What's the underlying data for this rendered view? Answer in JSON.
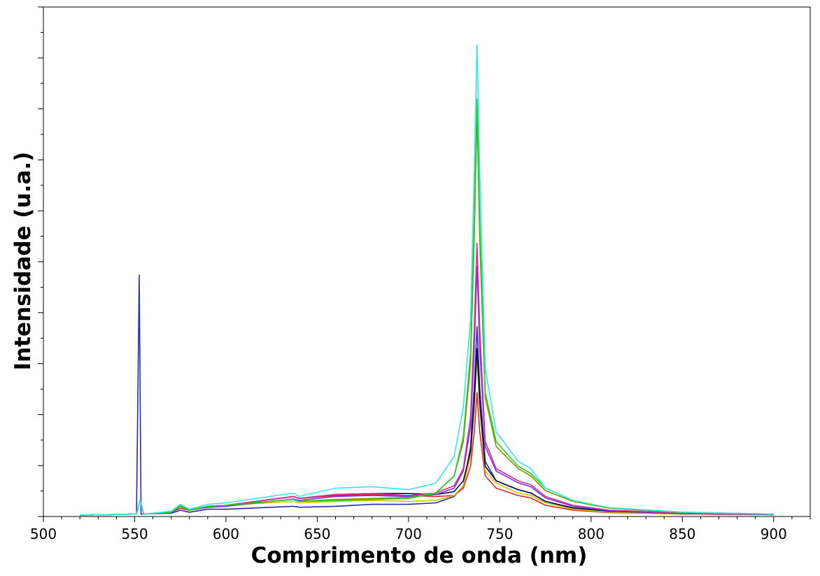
{
  "chart_data": {
    "type": "line",
    "xlabel": "Comprimento de onda (nm)",
    "ylabel": "Intensidade (u.a.)",
    "xlim": [
      500,
      920
    ],
    "ylim": [
      0,
      1000
    ],
    "x_ticks": [
      500,
      550,
      600,
      650,
      700,
      750,
      800,
      850,
      900
    ],
    "y_tick_labels_shown": false,
    "grid": false,
    "legend": "none",
    "colors": [
      "#33e6e6",
      "#22cc22",
      "#7a9a00",
      "#d42a9a",
      "#7733dd",
      "#0a0a40",
      "#c8c800",
      "#dd2222",
      "#2a2aaa"
    ],
    "series": [
      {
        "color": "#33e6e6",
        "values": [
          [
            520,
            0
          ],
          [
            551,
            2
          ],
          [
            553,
            30
          ],
          [
            555,
            2
          ],
          [
            570,
            8
          ],
          [
            575,
            22
          ],
          [
            580,
            12
          ],
          [
            590,
            22
          ],
          [
            600,
            25
          ],
          [
            637,
            45
          ],
          [
            640,
            38
          ],
          [
            660,
            55
          ],
          [
            680,
            58
          ],
          [
            700,
            52
          ],
          [
            715,
            65
          ],
          [
            725,
            120
          ],
          [
            730,
            220
          ],
          [
            734,
            400
          ],
          [
            736,
            700
          ],
          [
            737.5,
            960
          ],
          [
            739,
            700
          ],
          [
            742,
            300
          ],
          [
            748,
            170
          ],
          [
            760,
            110
          ],
          [
            767,
            95
          ],
          [
            775,
            55
          ],
          [
            790,
            30
          ],
          [
            810,
            15
          ],
          [
            850,
            6
          ],
          [
            900,
            2
          ]
        ]
      },
      {
        "color": "#22cc22",
        "values": [
          [
            520,
            0
          ],
          [
            551,
            2
          ],
          [
            553,
            30
          ],
          [
            555,
            2
          ],
          [
            570,
            6
          ],
          [
            575,
            20
          ],
          [
            580,
            10
          ],
          [
            590,
            18
          ],
          [
            600,
            20
          ],
          [
            637,
            32
          ],
          [
            640,
            28
          ],
          [
            660,
            30
          ],
          [
            680,
            32
          ],
          [
            700,
            34
          ],
          [
            715,
            45
          ],
          [
            725,
            80
          ],
          [
            730,
            160
          ],
          [
            734,
            330
          ],
          [
            736,
            600
          ],
          [
            737.5,
            850
          ],
          [
            739,
            600
          ],
          [
            742,
            250
          ],
          [
            748,
            150
          ],
          [
            760,
            100
          ],
          [
            767,
            85
          ],
          [
            775,
            55
          ],
          [
            790,
            30
          ],
          [
            810,
            15
          ],
          [
            850,
            6
          ],
          [
            900,
            2
          ]
        ]
      },
      {
        "color": "#7a9a00",
        "values": [
          [
            520,
            0
          ],
          [
            551,
            2
          ],
          [
            553,
            30
          ],
          [
            555,
            2
          ],
          [
            570,
            6
          ],
          [
            575,
            18
          ],
          [
            580,
            10
          ],
          [
            590,
            18
          ],
          [
            600,
            20
          ],
          [
            637,
            32
          ],
          [
            640,
            28
          ],
          [
            660,
            32
          ],
          [
            680,
            34
          ],
          [
            700,
            36
          ],
          [
            715,
            45
          ],
          [
            725,
            80
          ],
          [
            730,
            150
          ],
          [
            734,
            310
          ],
          [
            736,
            560
          ],
          [
            737.5,
            820
          ],
          [
            739,
            560
          ],
          [
            742,
            240
          ],
          [
            748,
            140
          ],
          [
            760,
            95
          ],
          [
            767,
            80
          ],
          [
            775,
            50
          ],
          [
            790,
            28
          ],
          [
            810,
            14
          ],
          [
            850,
            5
          ],
          [
            900,
            2
          ]
        ]
      },
      {
        "color": "#d42a9a",
        "values": [
          [
            520,
            0
          ],
          [
            551,
            2
          ],
          [
            553,
            30
          ],
          [
            555,
            2
          ],
          [
            570,
            6
          ],
          [
            575,
            20
          ],
          [
            580,
            10
          ],
          [
            590,
            18
          ],
          [
            600,
            20
          ],
          [
            637,
            38
          ],
          [
            640,
            34
          ],
          [
            660,
            42
          ],
          [
            680,
            44
          ],
          [
            700,
            40
          ],
          [
            715,
            45
          ],
          [
            725,
            60
          ],
          [
            730,
            95
          ],
          [
            734,
            200
          ],
          [
            736,
            380
          ],
          [
            737.5,
            555
          ],
          [
            739,
            380
          ],
          [
            742,
            150
          ],
          [
            748,
            95
          ],
          [
            760,
            70
          ],
          [
            767,
            62
          ],
          [
            775,
            38
          ],
          [
            790,
            20
          ],
          [
            810,
            10
          ],
          [
            850,
            4
          ],
          [
            900,
            2
          ]
        ]
      },
      {
        "color": "#7733dd",
        "values": [
          [
            520,
            0
          ],
          [
            551,
            2
          ],
          [
            553,
            30
          ],
          [
            555,
            2
          ],
          [
            570,
            6
          ],
          [
            575,
            18
          ],
          [
            580,
            10
          ],
          [
            590,
            16
          ],
          [
            600,
            18
          ],
          [
            637,
            33
          ],
          [
            640,
            30
          ],
          [
            660,
            38
          ],
          [
            680,
            40
          ],
          [
            700,
            38
          ],
          [
            715,
            42
          ],
          [
            725,
            55
          ],
          [
            730,
            90
          ],
          [
            734,
            180
          ],
          [
            736,
            340
          ],
          [
            737.5,
            508
          ],
          [
            739,
            340
          ],
          [
            742,
            140
          ],
          [
            748,
            90
          ],
          [
            760,
            66
          ],
          [
            767,
            58
          ],
          [
            775,
            35
          ],
          [
            790,
            18
          ],
          [
            810,
            9
          ],
          [
            850,
            3
          ],
          [
            900,
            1
          ]
        ]
      },
      {
        "color": "#0a0a40",
        "values": [
          [
            520,
            0
          ],
          [
            551,
            2
          ],
          [
            553,
            30
          ],
          [
            555,
            2
          ],
          [
            570,
            6
          ],
          [
            575,
            18
          ],
          [
            580,
            10
          ],
          [
            590,
            18
          ],
          [
            600,
            20
          ],
          [
            637,
            38
          ],
          [
            640,
            34
          ],
          [
            660,
            42
          ],
          [
            680,
            44
          ],
          [
            700,
            44
          ],
          [
            715,
            42
          ],
          [
            725,
            48
          ],
          [
            730,
            70
          ],
          [
            734,
            130
          ],
          [
            736,
            230
          ],
          [
            737.5,
            340
          ],
          [
            739,
            230
          ],
          [
            742,
            100
          ],
          [
            748,
            70
          ],
          [
            760,
            52
          ],
          [
            767,
            45
          ],
          [
            775,
            28
          ],
          [
            790,
            15
          ],
          [
            810,
            8
          ],
          [
            850,
            3
          ],
          [
            900,
            1
          ]
        ]
      },
      {
        "color": "#c8c800",
        "values": [
          [
            520,
            0
          ],
          [
            551,
            2
          ],
          [
            553,
            30
          ],
          [
            555,
            2
          ],
          [
            570,
            6
          ],
          [
            575,
            18
          ],
          [
            580,
            10
          ],
          [
            590,
            18
          ],
          [
            600,
            20
          ],
          [
            637,
            28
          ],
          [
            640,
            25
          ],
          [
            660,
            28
          ],
          [
            680,
            30
          ],
          [
            700,
            28
          ],
          [
            715,
            30
          ],
          [
            725,
            40
          ],
          [
            730,
            60
          ],
          [
            734,
            120
          ],
          [
            736,
            220
          ],
          [
            737.5,
            320
          ],
          [
            739,
            220
          ],
          [
            742,
            90
          ],
          [
            748,
            65
          ],
          [
            760,
            45
          ],
          [
            767,
            40
          ],
          [
            775,
            25
          ],
          [
            790,
            12
          ],
          [
            810,
            6
          ],
          [
            850,
            2
          ],
          [
            900,
            1
          ]
        ]
      },
      {
        "color": "#dd2222",
        "values": [
          [
            520,
            0
          ],
          [
            551,
            2
          ],
          [
            553,
            30
          ],
          [
            555,
            2
          ],
          [
            570,
            6
          ],
          [
            575,
            14
          ],
          [
            580,
            10
          ],
          [
            590,
            16
          ],
          [
            600,
            20
          ],
          [
            637,
            38
          ],
          [
            640,
            34
          ],
          [
            660,
            40
          ],
          [
            680,
            42
          ],
          [
            700,
            40
          ],
          [
            715,
            38
          ],
          [
            725,
            40
          ],
          [
            730,
            55
          ],
          [
            734,
            100
          ],
          [
            736,
            170
          ],
          [
            737.5,
            250
          ],
          [
            739,
            170
          ],
          [
            742,
            80
          ],
          [
            748,
            55
          ],
          [
            760,
            40
          ],
          [
            767,
            35
          ],
          [
            775,
            20
          ],
          [
            790,
            10
          ],
          [
            810,
            5
          ],
          [
            850,
            2
          ],
          [
            900,
            1
          ]
        ]
      },
      {
        "color": "#2a2aaa",
        "values": [
          [
            520,
            0
          ],
          [
            551,
            2
          ],
          [
            552.5,
            490
          ],
          [
            553.5,
            2
          ],
          [
            570,
            4
          ],
          [
            575,
            10
          ],
          [
            580,
            6
          ],
          [
            590,
            12
          ],
          [
            600,
            12
          ],
          [
            637,
            18
          ],
          [
            640,
            16
          ],
          [
            660,
            18
          ],
          [
            680,
            22
          ],
          [
            700,
            22
          ],
          [
            715,
            25
          ],
          [
            725,
            38
          ],
          [
            730,
            60
          ],
          [
            734,
            140
          ],
          [
            736,
            260
          ],
          [
            737.5,
            385
          ],
          [
            739,
            260
          ],
          [
            742,
            110
          ],
          [
            748,
            70
          ],
          [
            760,
            52
          ],
          [
            767,
            45
          ],
          [
            775,
            28
          ],
          [
            790,
            14
          ],
          [
            810,
            7
          ],
          [
            850,
            3
          ],
          [
            900,
            1
          ]
        ]
      }
    ]
  }
}
